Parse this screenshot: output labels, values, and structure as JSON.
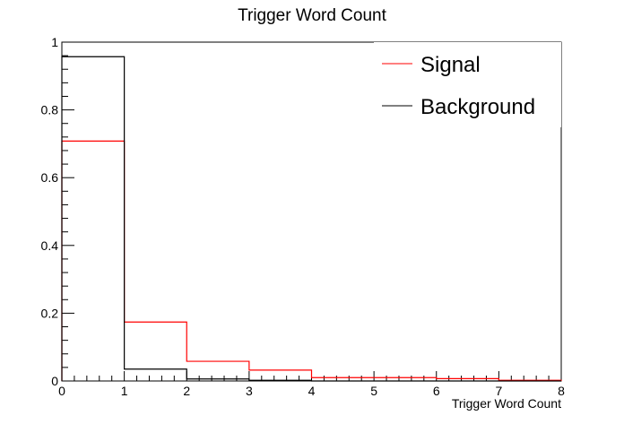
{
  "chart_data": {
    "type": "histogram",
    "title": "Trigger Word Count",
    "xlabel": "Trigger Word Count",
    "ylabel": "",
    "xlim": [
      0,
      8
    ],
    "ylim": [
      0,
      1
    ],
    "bin_edges": [
      0,
      1,
      2,
      3,
      4,
      5,
      6,
      7,
      8
    ],
    "series": [
      {
        "name": "Signal",
        "color": "#ff0000",
        "values": [
          0.708,
          0.174,
          0.058,
          0.032,
          0.01,
          0.01,
          0.007,
          0.002
        ]
      },
      {
        "name": "Background",
        "color": "#000000",
        "values": [
          0.957,
          0.035,
          0.006,
          0.002,
          0.0,
          0.0,
          0.0,
          0.0
        ]
      }
    ],
    "x_ticks": [
      "0",
      "1",
      "2",
      "3",
      "4",
      "5",
      "6",
      "7",
      "8"
    ],
    "y_ticks": [
      "0",
      "0.2",
      "0.4",
      "0.6",
      "0.8",
      "1"
    ],
    "legend_position": "top-right",
    "grid": false
  }
}
